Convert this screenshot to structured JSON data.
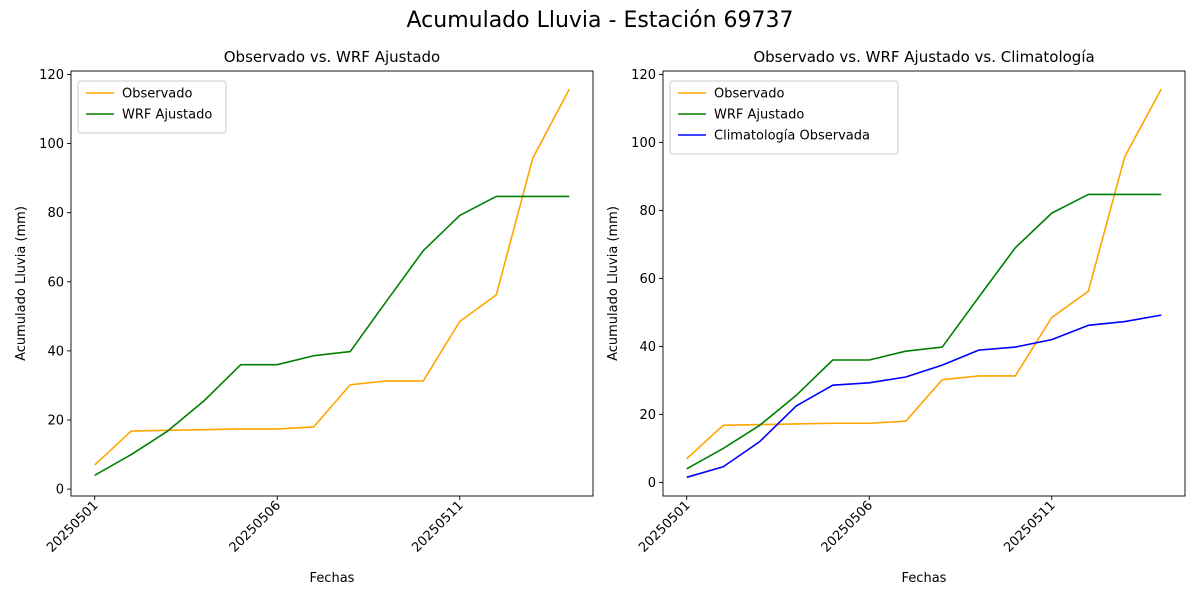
{
  "figure": {
    "suptitle": "Acumulado Lluvia - Estación 69737"
  },
  "chart_data": [
    {
      "type": "line",
      "title": "Observado vs. WRF Ajustado",
      "xlabel": "Fechas",
      "ylabel": "Acumulado Lluvia (mm)",
      "x": [
        1,
        2,
        3,
        4,
        5,
        6,
        7,
        8,
        9,
        10,
        11,
        12,
        13,
        14
      ],
      "xticks": [
        1,
        6,
        11
      ],
      "xtick_labels": [
        "20250501",
        "20250506",
        "20250511"
      ],
      "xlim": [
        0.35,
        14.65
      ],
      "ylim": [
        -2,
        121
      ],
      "yticks": [
        0,
        20,
        40,
        60,
        80,
        100,
        120
      ],
      "legend": "top-left",
      "series": [
        {
          "name": "Observado",
          "color": "#FFA500",
          "values": [
            7.0,
            16.8,
            17.0,
            17.2,
            17.4,
            17.4,
            18.0,
            30.2,
            31.3,
            31.3,
            48.5,
            56.2,
            95.8,
            115.7
          ]
        },
        {
          "name": "WRF Ajustado",
          "color": "#008000",
          "values": [
            4.0,
            10.0,
            16.8,
            25.6,
            36.0,
            36.0,
            38.6,
            39.8,
            54.5,
            69.0,
            79.2,
            84.7,
            84.7,
            84.7
          ]
        }
      ]
    },
    {
      "type": "line",
      "title": "Observado vs. WRF Ajustado vs. Climatología",
      "xlabel": "Fechas",
      "ylabel": "Acumulado Lluvia (mm)",
      "x": [
        1,
        2,
        3,
        4,
        5,
        6,
        7,
        8,
        9,
        10,
        11,
        12,
        13,
        14
      ],
      "xticks": [
        1,
        6,
        11
      ],
      "xtick_labels": [
        "20250501",
        "20250506",
        "20250511"
      ],
      "xlim": [
        0.35,
        14.65
      ],
      "ylim": [
        -4,
        121
      ],
      "yticks": [
        0,
        20,
        40,
        60,
        80,
        100,
        120
      ],
      "legend": "top-left",
      "series": [
        {
          "name": "Observado",
          "color": "#FFA500",
          "values": [
            7.0,
            16.8,
            17.0,
            17.2,
            17.4,
            17.4,
            18.0,
            30.2,
            31.3,
            31.3,
            48.5,
            56.2,
            95.8,
            115.7
          ]
        },
        {
          "name": "WRF Ajustado",
          "color": "#008000",
          "values": [
            4.0,
            10.0,
            16.8,
            25.6,
            36.0,
            36.0,
            38.6,
            39.8,
            54.5,
            69.0,
            79.2,
            84.7,
            84.7,
            84.7
          ]
        },
        {
          "name": "Climatología Observada",
          "color": "#0000FF",
          "values": [
            1.5,
            4.6,
            12.0,
            22.5,
            28.6,
            29.3,
            31.0,
            34.5,
            38.9,
            39.8,
            42.0,
            46.2,
            47.3,
            49.2
          ]
        }
      ]
    }
  ]
}
